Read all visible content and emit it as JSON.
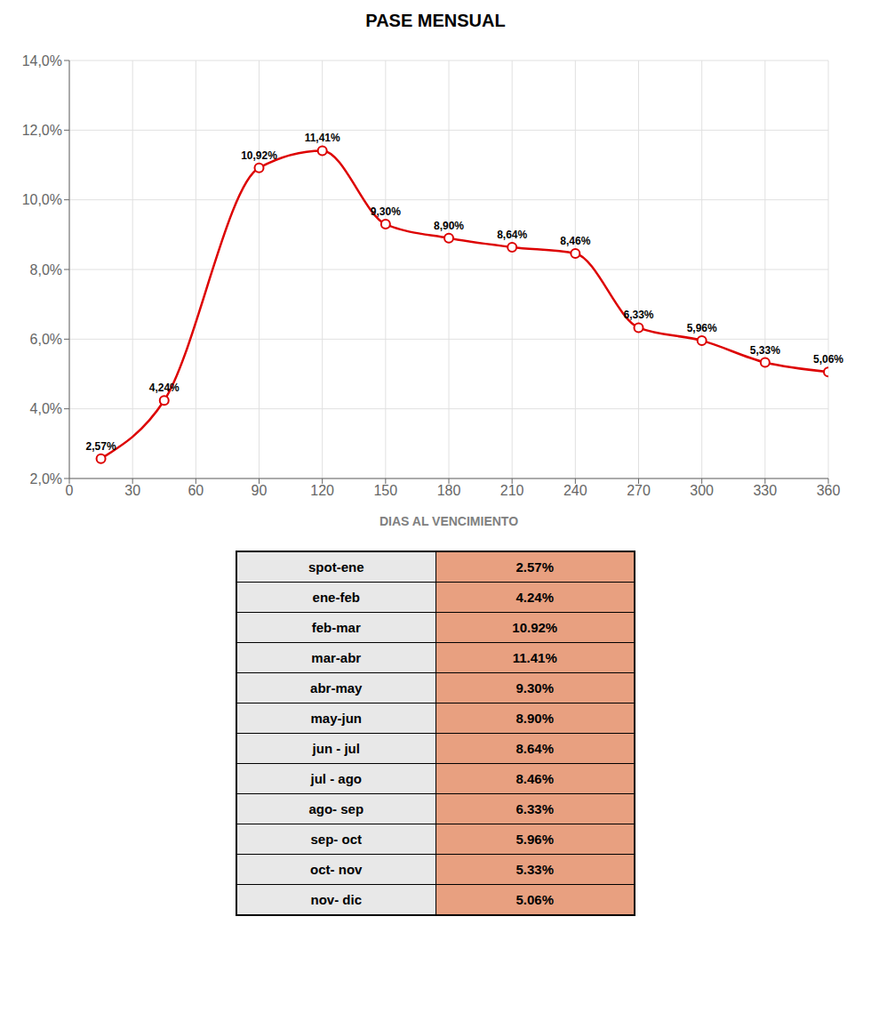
{
  "chart_data": [
    {
      "type": "line",
      "title": "PASE MENSUAL",
      "xlabel": "DIAS AL VENCIMIENTO",
      "x": [
        15,
        45,
        90,
        120,
        150,
        180,
        210,
        240,
        270,
        300,
        330,
        360
      ],
      "series": [
        {
          "name": "PASE MENSUAL",
          "color": "#DD0000",
          "marker": "circle",
          "values": [
            2.57,
            4.24,
            10.92,
            11.41,
            9.3,
            8.9,
            8.64,
            8.46,
            6.33,
            5.96,
            5.33,
            5.06
          ],
          "value_labels": [
            "2,57%",
            "4,24%",
            "10,92%",
            "11,41%",
            "9,30%",
            "8,90%",
            "8,64%",
            "8,46%",
            "6,33%",
            "5,96%",
            "5,33%",
            "5,06%"
          ]
        }
      ],
      "data_labels": true,
      "xlim": [
        0,
        360
      ],
      "xticks": [
        0,
        30,
        60,
        90,
        120,
        150,
        180,
        210,
        240,
        270,
        300,
        330,
        360
      ],
      "ylim": [
        2.0,
        14.0
      ],
      "yticks": [
        {
          "value": 2.0,
          "label": "2,0%"
        },
        {
          "value": 4.0,
          "label": "4,0%"
        },
        {
          "value": 6.0,
          "label": "6,0%"
        },
        {
          "value": 8.0,
          "label": "8,0%"
        },
        {
          "value": 10.0,
          "label": "10,0%"
        },
        {
          "value": 12.0,
          "label": "12,0%"
        },
        {
          "value": 14.0,
          "label": "14,0%"
        }
      ],
      "grid": true
    },
    {
      "type": "table",
      "categories": [
        "spot-ene",
        "ene-feb",
        "feb-mar",
        "mar-abr",
        "abr-may",
        "may-jun",
        "jun - jul",
        "jul - ago",
        "ago- sep",
        "sep- oct",
        "oct- nov",
        "nov- dic"
      ],
      "values": [
        2.57,
        4.24,
        10.92,
        11.41,
        9.3,
        8.9,
        8.64,
        8.46,
        6.33,
        5.96,
        5.33,
        5.06
      ],
      "value_labels": [
        "2.57%",
        "4.24%",
        "10.92%",
        "11.41%",
        "9.30%",
        "8.90%",
        "8.64%",
        "8.46%",
        "6.33%",
        "5.96%",
        "5.33%",
        "5.06%"
      ],
      "colors": [
        "#E8E8E8",
        "#E8A080"
      ]
    }
  ]
}
